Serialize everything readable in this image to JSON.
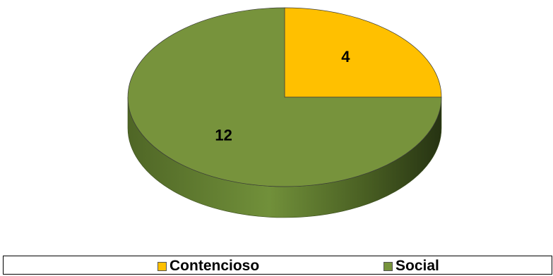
{
  "chart_data": {
    "type": "pie",
    "title": "",
    "three_d": true,
    "categories": [
      "Contencioso",
      "Social"
    ],
    "values": [
      4,
      12
    ],
    "colors": [
      "#FFC000",
      "#77933C"
    ],
    "data_labels": [
      "4",
      "12"
    ],
    "legend_position": "bottom"
  },
  "legend": {
    "items": [
      {
        "label": "Contencioso",
        "color": "#FFC000"
      },
      {
        "label": "Social",
        "color": "#77933C"
      }
    ]
  }
}
